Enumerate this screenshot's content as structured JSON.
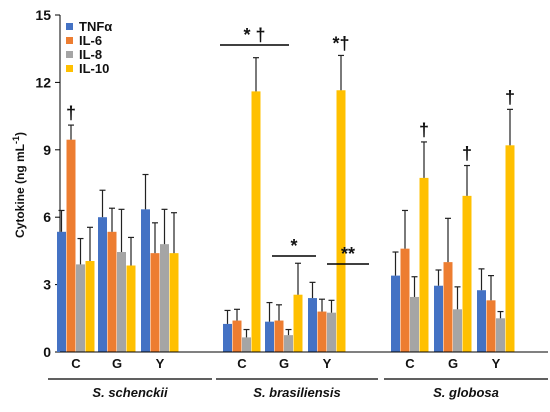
{
  "chart_data": {
    "type": "bar",
    "title": "",
    "xlabel": "",
    "ylabel": "Cytokine (ng mL",
    "ylabel_superscript": "-1",
    "ylabel_suffix": ")",
    "ylim": [
      0,
      15
    ],
    "yticks": [
      "0",
      "3",
      "6",
      "9",
      "12",
      "15"
    ],
    "grid": false,
    "legend_position": "top-left",
    "categories": [
      "C",
      "G",
      "Y",
      "C",
      "G",
      "Y",
      "C",
      "G",
      "Y"
    ],
    "groups": [
      {
        "label": "S. schenckii",
        "category_indices": [
          0,
          1,
          2
        ]
      },
      {
        "label": "S. brasiliensis",
        "category_indices": [
          3,
          4,
          5
        ]
      },
      {
        "label": "S. globosa",
        "category_indices": [
          6,
          7,
          8
        ]
      }
    ],
    "series": [
      {
        "name": "TNFα",
        "color": "#4472C4",
        "values": [
          5.35,
          6.0,
          6.35,
          1.25,
          1.35,
          2.4,
          3.4,
          2.95,
          2.75
        ],
        "errors": [
          0.95,
          1.2,
          1.55,
          0.6,
          0.85,
          0.7,
          1.05,
          0.7,
          0.95
        ]
      },
      {
        "name": "IL-6",
        "color": "#ED7D31",
        "values": [
          9.45,
          5.35,
          4.4,
          1.4,
          1.4,
          1.8,
          4.6,
          4.0,
          2.3
        ],
        "errors": [
          0.65,
          1.05,
          1.35,
          0.5,
          0.7,
          0.55,
          1.7,
          1.95,
          1.1
        ]
      },
      {
        "name": "IL-8",
        "color": "#A5A5A5",
        "values": [
          3.9,
          4.45,
          4.8,
          0.65,
          0.75,
          1.75,
          2.45,
          1.9,
          1.5
        ],
        "errors": [
          1.15,
          1.9,
          1.55,
          0.35,
          0.25,
          0.55,
          0.9,
          1.0,
          0.3
        ]
      },
      {
        "name": "IL-10",
        "color": "#FFC000",
        "values": [
          4.05,
          3.85,
          4.4,
          11.6,
          2.55,
          11.65,
          7.75,
          6.95,
          9.2
        ],
        "errors": [
          1.5,
          1.25,
          1.8,
          1.5,
          1.4,
          1.55,
          1.6,
          1.35,
          1.6
        ]
      }
    ],
    "annotations": [
      {
        "text": "†",
        "category_index": 0,
        "series_index": 1,
        "type": "bar"
      },
      {
        "text": "* †",
        "category_index": 3,
        "type": "bracket"
      },
      {
        "text": "*",
        "category_index": 4,
        "type": "bracket"
      },
      {
        "text": "**",
        "category_index": 5,
        "type": "bracket"
      },
      {
        "text": "*†",
        "category_index": 5,
        "series_index": 3,
        "type": "bar"
      },
      {
        "text": "†",
        "category_index": 6,
        "series_index": 3,
        "type": "bar"
      },
      {
        "text": "†",
        "category_index": 7,
        "series_index": 3,
        "type": "bar"
      },
      {
        "text": "†",
        "category_index": 8,
        "series_index": 3,
        "type": "bar"
      }
    ]
  }
}
